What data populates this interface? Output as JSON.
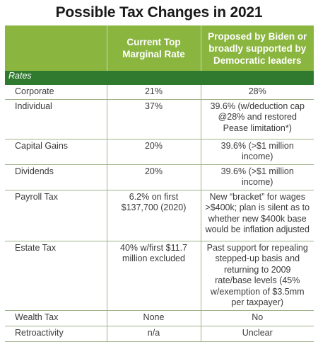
{
  "title": "Possible Tax Changes in 2021",
  "header": {
    "col1": "",
    "col2": "Current Top Marginal Rate",
    "col3": "Proposed by Biden or broadly supported by Democratic leaders"
  },
  "section": "Rates",
  "rows": [
    {
      "label": "Corporate",
      "current": "21%",
      "proposed": "28%"
    },
    {
      "label": "Individual",
      "current": "37%",
      "proposed": "39.6% (w/deduction cap @28% and restored Pease limitation*)"
    },
    {
      "label": "Capital Gains",
      "current": "20%",
      "proposed": "39.6% (>$1 million income)"
    },
    {
      "label": "Dividends",
      "current": "20%",
      "proposed": "39.6% (>$1 million income)"
    },
    {
      "label": "Payroll Tax",
      "current": "6.2% on first $137,700 (2020)",
      "proposed": "New “bracket” for wages >$400k; plan is silent as to whether new $400k base would be inflation adjusted"
    },
    {
      "label": "Estate Tax",
      "current": "40% w/first $11.7 million excluded",
      "proposed": "Past support for repealing stepped-up basis and returning to 2009 rate/base levels (45% w/exemption of $3.5mm per taxpayer)"
    },
    {
      "label": "Wealth Tax",
      "current": "None",
      "proposed": "No"
    },
    {
      "label": "Retroactivity",
      "current": "n/a",
      "proposed": "Unclear"
    }
  ]
}
